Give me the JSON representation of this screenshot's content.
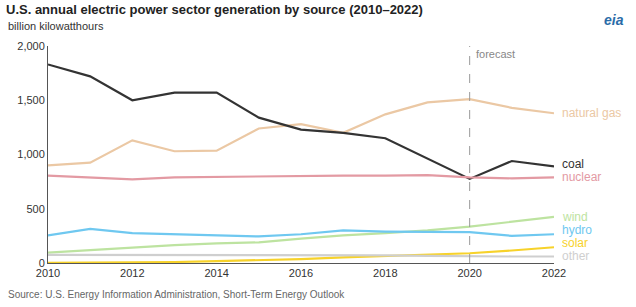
{
  "chart_data": {
    "type": "line",
    "title": "U.S. annual electric power sector generation by source (2010–2022)",
    "subtitle": "billion kilowatthours",
    "source": "Source: U.S. Energy Information Administration, Short-Term Energy Outlook",
    "logo": "eia",
    "annotations": [
      {
        "text": "forecast",
        "x": 2020
      }
    ],
    "x": [
      2010,
      2011,
      2012,
      2013,
      2014,
      2015,
      2016,
      2017,
      2018,
      2019,
      2020,
      2021,
      2022
    ],
    "series": [
      {
        "name": "natural gas",
        "color": "#ebc8a4",
        "values": [
          900,
          925,
          1130,
          1030,
          1035,
          1240,
          1280,
          1200,
          1370,
          1480,
          1510,
          1430,
          1380
        ]
      },
      {
        "name": "coal",
        "color": "#333333",
        "values": [
          1830,
          1720,
          1500,
          1570,
          1570,
          1340,
          1230,
          1200,
          1150,
          965,
          775,
          940,
          890
        ]
      },
      {
        "name": "nuclear",
        "color": "#e39aa3",
        "values": [
          805,
          790,
          770,
          790,
          795,
          795,
          805,
          805,
          805,
          810,
          790,
          780,
          790
        ]
      },
      {
        "name": "wind",
        "color": "#bde3a0",
        "values": [
          95,
          120,
          140,
          165,
          180,
          190,
          225,
          255,
          275,
          300,
          335,
          380,
          425
        ]
      },
      {
        "name": "hydro",
        "color": "#6fc8f0",
        "values": [
          255,
          315,
          275,
          265,
          255,
          245,
          265,
          300,
          290,
          285,
          285,
          250,
          265
        ]
      },
      {
        "name": "solar",
        "color": "#f7d22a",
        "values": [
          1,
          2,
          4,
          9,
          17,
          25,
          36,
          52,
          63,
          72,
          90,
          115,
          145
        ]
      },
      {
        "name": "other",
        "color": "#cfcfcf",
        "values": [
          75,
          75,
          70,
          70,
          70,
          70,
          70,
          70,
          70,
          65,
          60,
          60,
          60
        ]
      }
    ],
    "xlim": [
      2010,
      2022
    ],
    "xticks": [
      2010,
      2012,
      2014,
      2016,
      2018,
      2020,
      2022
    ],
    "ylim": [
      0,
      2000
    ],
    "yticks": [
      0,
      500,
      {
        "value": 1000,
        "label": "1,000"
      },
      {
        "value": 1500,
        "label": "1,500"
      },
      {
        "value": 2000,
        "label": "2,000"
      }
    ],
    "grid": false,
    "legend": "none"
  }
}
